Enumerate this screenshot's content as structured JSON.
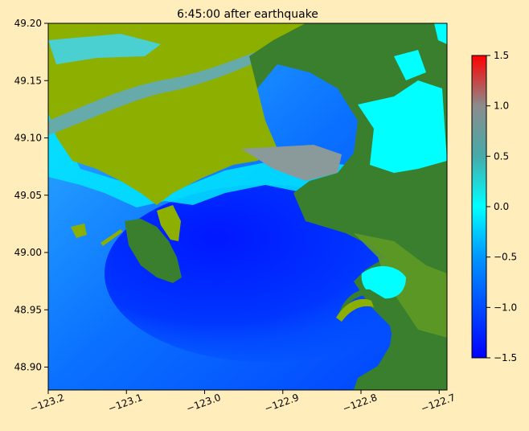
{
  "chart_data": {
    "type": "heatmap",
    "title": "6:45:00 after earthquake",
    "xlabel": "",
    "ylabel": "",
    "xlim": [
      -123.2,
      -122.69
    ],
    "ylim": [
      48.88,
      49.2
    ],
    "x_ticks": [
      -123.2,
      -123.1,
      -123.0,
      -122.9,
      -122.8,
      -122.7
    ],
    "x_tick_labels": [
      "−123.2",
      "−123.1",
      "−123.0",
      "−122.9",
      "−122.8",
      "−122.7"
    ],
    "y_ticks": [
      48.9,
      48.95,
      49.0,
      49.05,
      49.1,
      49.15,
      49.2
    ],
    "y_tick_labels": [
      "48.90",
      "48.95",
      "49.00",
      "49.05",
      "49.10",
      "49.15",
      "49.20"
    ],
    "colorbar": {
      "range": [
        -1.5,
        1.5
      ],
      "ticks": [
        -1.5,
        -1.0,
        -0.5,
        0.0,
        0.5,
        1.0,
        1.5
      ],
      "tick_labels": [
        "−1.5",
        "−1.0",
        "−0.5",
        "0.0",
        "0.5",
        "1.0",
        "1.5"
      ],
      "colors": [
        {
          "value": -1.5,
          "color": "#0000ff"
        },
        {
          "value": -0.5,
          "color": "#0096ff"
        },
        {
          "value": 0.0,
          "color": "#00ffff"
        },
        {
          "value": 0.5,
          "color": "#46aaaa"
        },
        {
          "value": 1.0,
          "color": "#8c8c8c"
        },
        {
          "value": 1.5,
          "color": "#ff0000"
        }
      ]
    },
    "land_colors": {
      "lowland": "#8db000",
      "upland": "#3a7f2e"
    },
    "grid": false
  }
}
